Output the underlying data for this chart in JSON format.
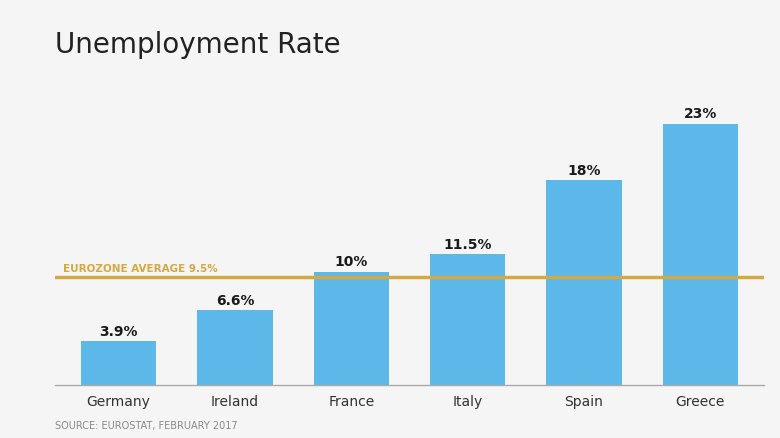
{
  "title": "Unemployment Rate",
  "categories": [
    "Germany",
    "Ireland",
    "France",
    "Italy",
    "Spain",
    "Greece"
  ],
  "values": [
    3.9,
    6.6,
    10.0,
    11.5,
    18.0,
    23.0
  ],
  "labels": [
    "3.9%",
    "6.6%",
    "10%",
    "11.5%",
    "18%",
    "23%"
  ],
  "bar_color": "#5BB8E8",
  "background_color": "#F5F5F5",
  "plot_bg_color": "#F5F5F5",
  "eurozone_avg": 9.5,
  "eurozone_label": "EUROZONE AVERAGE 9.5%",
  "eurozone_line_color": "#D4A843",
  "eurozone_label_color": "#D4A843",
  "source_text": "SOURCE: EUROSTAT, FEBRUARY 2017",
  "source_fontsize": 7,
  "title_fontsize": 20,
  "label_fontsize": 10,
  "xlabel_fontsize": 10,
  "ylim": [
    0,
    27
  ]
}
